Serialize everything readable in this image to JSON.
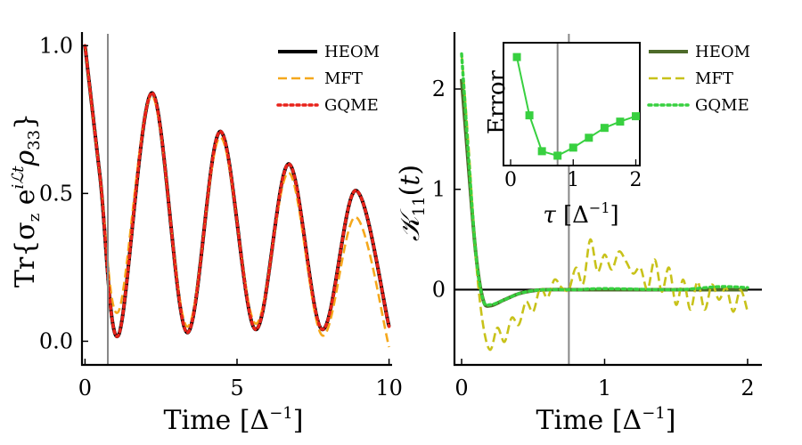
{
  "chart_data": [
    {
      "type": "line",
      "xlabel": "Time [Δ⁻¹]",
      "ylabel": "Tr{σz e^{iℒt} ρ33}",
      "xlim": [
        -0.1,
        10.1
      ],
      "ylim": [
        -0.08,
        1.04
      ],
      "xticks": [
        "0",
        "5",
        "10"
      ],
      "yticks": [
        "0.0",
        "0.5",
        "1.0"
      ],
      "vline_x": 0.75,
      "legend": [
        "HEOM",
        "MFT",
        "GQME"
      ],
      "series": [
        {
          "name": "HEOM",
          "color": "#000000",
          "style": "solid",
          "x": [
            0,
            0.5,
            1.1,
            2.2,
            3.35,
            4.45,
            5.6,
            6.7,
            7.8,
            8.9,
            10
          ],
          "y": [
            1.0,
            0.55,
            0.02,
            0.84,
            0.03,
            0.71,
            0.04,
            0.6,
            0.04,
            0.51,
            0.05
          ]
        },
        {
          "name": "MFT",
          "color": "#f5a81c",
          "style": "dashed",
          "x": [
            0,
            0.5,
            1.1,
            2.2,
            3.35,
            4.45,
            5.6,
            6.7,
            7.8,
            8.9,
            10
          ],
          "y": [
            1.0,
            0.55,
            0.1,
            0.83,
            0.05,
            0.69,
            0.06,
            0.57,
            0.02,
            0.42,
            -0.02
          ]
        },
        {
          "name": "GQME",
          "color": "#e8221a",
          "style": "dotted",
          "x": [
            0,
            0.5,
            1.1,
            2.2,
            3.35,
            4.45,
            5.6,
            6.7,
            7.8,
            8.9,
            10
          ],
          "y": [
            1.0,
            0.55,
            0.02,
            0.84,
            0.03,
            0.71,
            0.04,
            0.6,
            0.04,
            0.51,
            0.05
          ]
        }
      ]
    },
    {
      "type": "line",
      "xlabel": "Time [Δ⁻¹]",
      "ylabel": "𝒦11(t)",
      "xlim": [
        -0.05,
        2.1
      ],
      "ylim": [
        -0.75,
        2.55
      ],
      "xticks": [
        "0",
        "1",
        "2"
      ],
      "yticks": [
        "0",
        "1",
        "2"
      ],
      "vline_x": 0.75,
      "hline_y": 0,
      "legend": [
        "HEOM",
        "MFT",
        "GQME"
      ],
      "series": [
        {
          "name": "HEOM",
          "color": "#4e6b2a",
          "style": "solid",
          "x": [
            0,
            0.05,
            0.1,
            0.15,
            0.2,
            0.3,
            0.4,
            0.5,
            0.6,
            0.8,
            1.0,
            1.5,
            2.0
          ],
          "y": [
            2.1,
            1.2,
            0.35,
            -0.1,
            -0.16,
            -0.1,
            -0.04,
            -0.01,
            0.0,
            0.0,
            0.0,
            0.0,
            0.0
          ]
        },
        {
          "name": "MFT",
          "color": "#c8c21a",
          "style": "dashed",
          "x": [
            0,
            0.05,
            0.1,
            0.15,
            0.2,
            0.25,
            0.3,
            0.35,
            0.4,
            0.45,
            0.5,
            0.55,
            0.6,
            0.65,
            0.7,
            0.75,
            0.8,
            0.85,
            0.9,
            0.95,
            1.0,
            1.05,
            1.1,
            1.15,
            1.2,
            1.25,
            1.3,
            1.35,
            1.4,
            1.45,
            1.5,
            1.55,
            1.6,
            1.65,
            1.7,
            1.75,
            1.8,
            1.85,
            1.9,
            1.95,
            2.0
          ],
          "y": [
            2.35,
            1.4,
            0.3,
            -0.35,
            -0.6,
            -0.38,
            -0.52,
            -0.28,
            -0.35,
            -0.12,
            -0.22,
            0.02,
            -0.08,
            0.1,
            0.02,
            0.0,
            0.22,
            0.06,
            0.5,
            0.18,
            0.35,
            0.2,
            0.38,
            0.28,
            0.16,
            0.22,
            0.0,
            0.3,
            -0.02,
            0.22,
            -0.15,
            0.1,
            -0.2,
            0.08,
            -0.2,
            0.05,
            -0.1,
            0.02,
            -0.22,
            0.0,
            -0.22
          ]
        },
        {
          "name": "GQME",
          "color": "#38d040",
          "style": "dotted",
          "x": [
            0,
            0.05,
            0.1,
            0.15,
            0.2,
            0.3,
            0.4,
            0.5,
            0.6,
            0.8,
            1.0,
            1.5,
            1.8,
            2.0
          ],
          "y": [
            2.35,
            1.3,
            0.35,
            -0.1,
            -0.15,
            -0.1,
            -0.04,
            -0.01,
            0.0,
            0.0,
            0.01,
            0.0,
            0.03,
            0.02
          ]
        }
      ]
    },
    {
      "type": "line",
      "role": "inset",
      "xlabel": "τ [Δ⁻¹]",
      "ylabel": "Error",
      "xlim": [
        -0.1,
        2.05
      ],
      "ylim": [
        1.15,
        2.5
      ],
      "xticks": [
        "0",
        "1",
        "2"
      ],
      "vline_x": 0.75,
      "series": [
        {
          "name": "Error",
          "color": "#38d040",
          "style": "solid-square-markers",
          "x": [
            0.1,
            0.3,
            0.5,
            0.75,
            1.0,
            1.25,
            1.5,
            1.75,
            2.0
          ],
          "y": [
            2.35,
            1.7,
            1.3,
            1.25,
            1.34,
            1.45,
            1.56,
            1.63,
            1.69
          ]
        }
      ]
    }
  ]
}
